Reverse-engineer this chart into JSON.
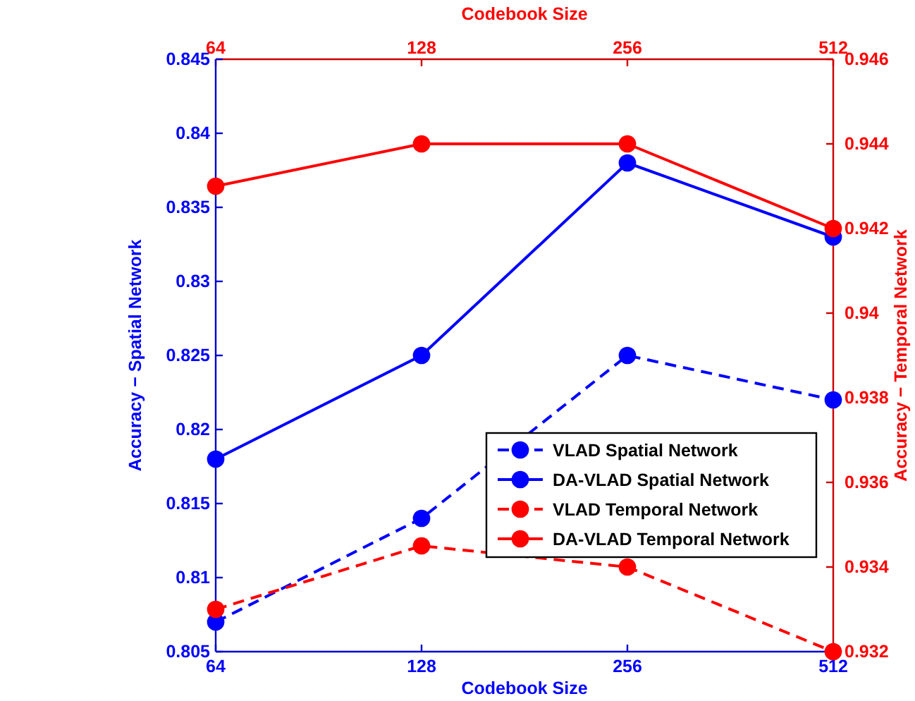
{
  "chart_data": {
    "type": "line",
    "xlabel": "Codebook Size",
    "x2label": "Codebook Size",
    "ylabel": "Accuracy − Spatial Network",
    "y2label": "Accuracy − Temporal Network",
    "categories": [
      "64",
      "128",
      "256",
      "512"
    ],
    "ylim": [
      0.805,
      0.845
    ],
    "yticks": [
      0.805,
      0.81,
      0.815,
      0.82,
      0.825,
      0.83,
      0.835,
      0.84,
      0.845
    ],
    "y2lim": [
      0.932,
      0.946
    ],
    "y2ticks": [
      0.932,
      0.934,
      0.936,
      0.938,
      0.94,
      0.942,
      0.944,
      0.946
    ],
    "marker": "circle",
    "legend": "bottom right",
    "grid": false,
    "series": [
      {
        "name": "VLAD Spatial Network",
        "color": "#0000ff",
        "line_style": "dashed",
        "values": [
          0.807,
          0.814,
          0.825,
          0.822
        ]
      },
      {
        "name": "DA-VLAD Spatial Network",
        "color": "#0000ff",
        "line_style": "solid",
        "values": [
          0.818,
          0.825,
          0.838,
          0.833
        ]
      },
      {
        "name": "VLAD Temporal Network",
        "color": "#ff0000",
        "line_style": "dashed",
        "axis": "y2",
        "values": [
          0.933,
          0.9345,
          0.934,
          0.932
        ]
      },
      {
        "name": "DA-VLAD Temporal Network",
        "color": "#ff0000",
        "line_style": "solid",
        "axis": "y2",
        "values": [
          0.943,
          0.944,
          0.944,
          0.942
        ]
      }
    ]
  }
}
